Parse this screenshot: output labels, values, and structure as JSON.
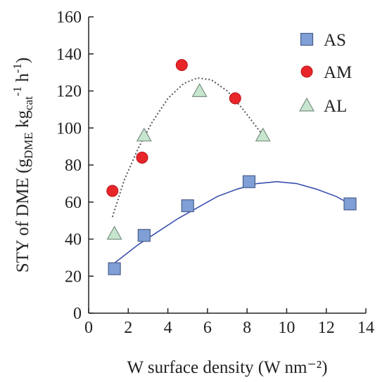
{
  "chart_data": {
    "type": "scatter",
    "xlabel": "W surface density (W nm⁻²)",
    "ylabel_parts": {
      "main": "STY of DME (g",
      "sub1": "DME",
      "mid": " kg",
      "sub2": "cat",
      "sup1": "-1",
      "mid2": " h",
      "sup2": "-1",
      "end": ")"
    },
    "xlim": [
      0,
      14
    ],
    "ylim": [
      0,
      160
    ],
    "xticks": [
      "0",
      "2",
      "4",
      "6",
      "8",
      "10",
      "12",
      "14"
    ],
    "yticks": [
      "0",
      "20",
      "40",
      "60",
      "80",
      "100",
      "120",
      "140",
      "160"
    ],
    "grid": false,
    "legend_position": "top-right",
    "series": [
      {
        "name": "AS",
        "marker": "square",
        "color": "#7f9fd6",
        "stroke": "#4a5e8a",
        "x": [
          1.3,
          2.8,
          5.0,
          8.1,
          13.2
        ],
        "y": [
          24,
          42,
          58,
          71,
          59
        ]
      },
      {
        "name": "AM",
        "marker": "circle",
        "color": "#e8262a",
        "stroke": "#b81418",
        "x": [
          1.2,
          2.7,
          4.7,
          7.4
        ],
        "y": [
          66,
          84,
          134,
          116
        ]
      },
      {
        "name": "AL",
        "marker": "triangle",
        "color": "#c6e6cf",
        "stroke": "#7a8f80",
        "x": [
          1.3,
          2.8,
          5.6,
          8.8
        ],
        "y": [
          43,
          96,
          120,
          96
        ]
      }
    ],
    "fits": [
      {
        "series": "AS",
        "style": "solid",
        "color": "#3a4fb0",
        "x": [
          1.3,
          2.5,
          3.5,
          4.5,
          5.5,
          6.5,
          7.5,
          8.5,
          9.5,
          10.5,
          11.5,
          12.5,
          13.2
        ],
        "y": [
          27,
          37,
          44,
          51,
          57,
          63,
          67,
          70,
          71,
          70,
          67,
          63,
          59
        ]
      },
      {
        "series": "AM+AL",
        "style": "dotted",
        "color": "#555555",
        "x": [
          1.2,
          1.8,
          2.5,
          3.2,
          4.0,
          4.8,
          5.5,
          6.2,
          7.0,
          7.8,
          8.8
        ],
        "y": [
          52,
          72,
          89,
          103,
          116,
          124,
          127,
          126,
          120,
          110,
          96
        ]
      }
    ]
  }
}
